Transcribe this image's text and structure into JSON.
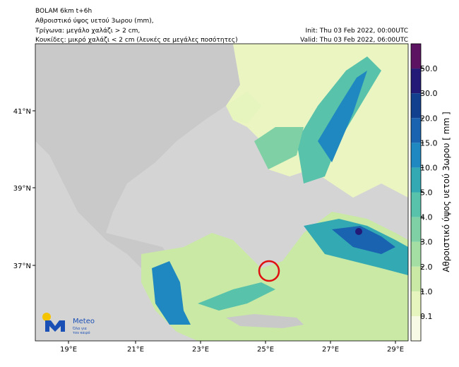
{
  "header": {
    "lines": [
      "BOLAM 6km t+6h",
      "Αθροιστικό ύψος υετού 3ωρου (mm),",
      "Τρίγωνα: μεγάλο χαλάζι > 2 cm,",
      "Κουκίδες: μικρό χαλάζι < 2 cm (λευκές σε μεγάλες ποσότητες)"
    ],
    "init": "Init: Thu 03 Feb 2022, 00:00UTC",
    "valid": "Valid: Thu 03 Feb 2022, 06:00UTC"
  },
  "axes": {
    "lon": [
      "19°E",
      "21°E",
      "23°E",
      "25°E",
      "27°E",
      "29°E"
    ],
    "lat": [
      "41°N",
      "39°N",
      "37°N"
    ]
  },
  "colorbar": {
    "label": "Αθροιστικό ύψος υετού 3ωρου [ mm ]",
    "ticks": [
      "0.1",
      "1.0",
      "2.0",
      "3.0",
      "4.0",
      "5.0",
      "10.0",
      "15.0",
      "20.0",
      "30.0",
      "50.0"
    ],
    "colors": [
      "#f7fbe6",
      "#e6f4bd",
      "#c9e9a5",
      "#a4dea3",
      "#7fd1a5",
      "#58c2aa",
      "#33a9b3",
      "#1f88c0",
      "#1a63b0",
      "#123f8e",
      "#221a76",
      "#5c1462"
    ]
  },
  "logo": {
    "name": "Meteo",
    "slogan": [
      "Όλα για",
      "τον καιρό"
    ]
  }
}
